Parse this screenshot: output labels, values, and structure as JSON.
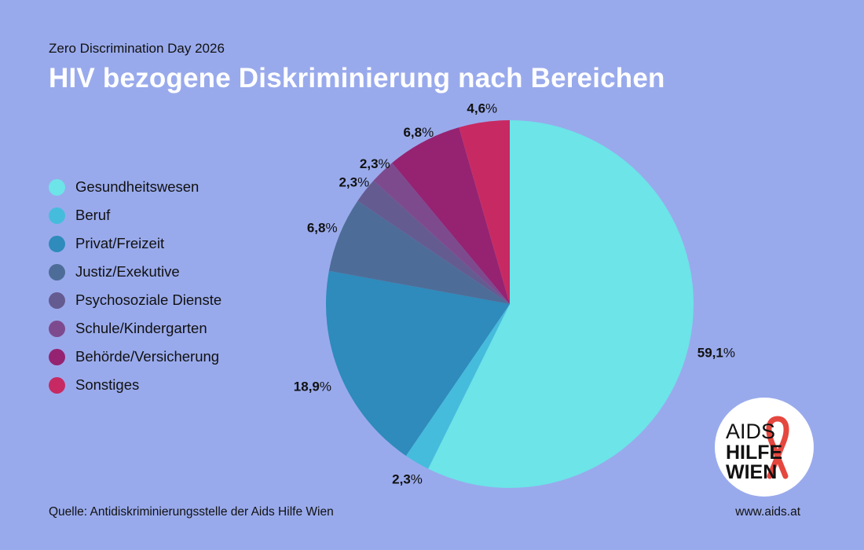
{
  "header": {
    "subtitle": "Zero Discrimination Day 2026",
    "title": "HIV bezogene Diskriminierung nach Bereichen"
  },
  "chart_data": {
    "type": "pie",
    "title": "HIV bezogene Diskriminierung nach Bereichen",
    "subtitle": "Zero Discrimination Day 2026",
    "legend_position": "left",
    "slices": [
      {
        "label": "Gesundheitswesen",
        "value": 59.1,
        "value_text": "59,1",
        "color": "#6ce4e8"
      },
      {
        "label": "Beruf",
        "value": 2.3,
        "value_text": "2,3",
        "color": "#46bcdc"
      },
      {
        "label": "Privat/Freizeit",
        "value": 18.9,
        "value_text": "18,9",
        "color": "#2e8bbb"
      },
      {
        "label": "Justiz/Exekutive",
        "value": 6.8,
        "value_text": "6,8",
        "color": "#4d6d98"
      },
      {
        "label": "Psychosoziale Dienste",
        "value": 2.3,
        "value_text": "2,3",
        "color": "#645b91"
      },
      {
        "label": "Schule/Kindergarten",
        "value": 2.3,
        "value_text": "2,3",
        "color": "#7e4a8e"
      },
      {
        "label": "Behörde/Versicherung",
        "value": 6.8,
        "value_text": "6,8",
        "color": "#952371"
      },
      {
        "label": "Sonstiges",
        "value": 4.6,
        "value_text": "4,6",
        "color": "#c72a62"
      }
    ],
    "percent_sign": "%"
  },
  "footer": {
    "source": "Quelle: Antidiskriminierungsstelle der Aids Hilfe Wien",
    "url": "www.aids.at"
  },
  "logo": {
    "line1": "AIDS",
    "line2": "HILFE",
    "line3": "WIEN",
    "ribbon_color": "#e5473f"
  }
}
